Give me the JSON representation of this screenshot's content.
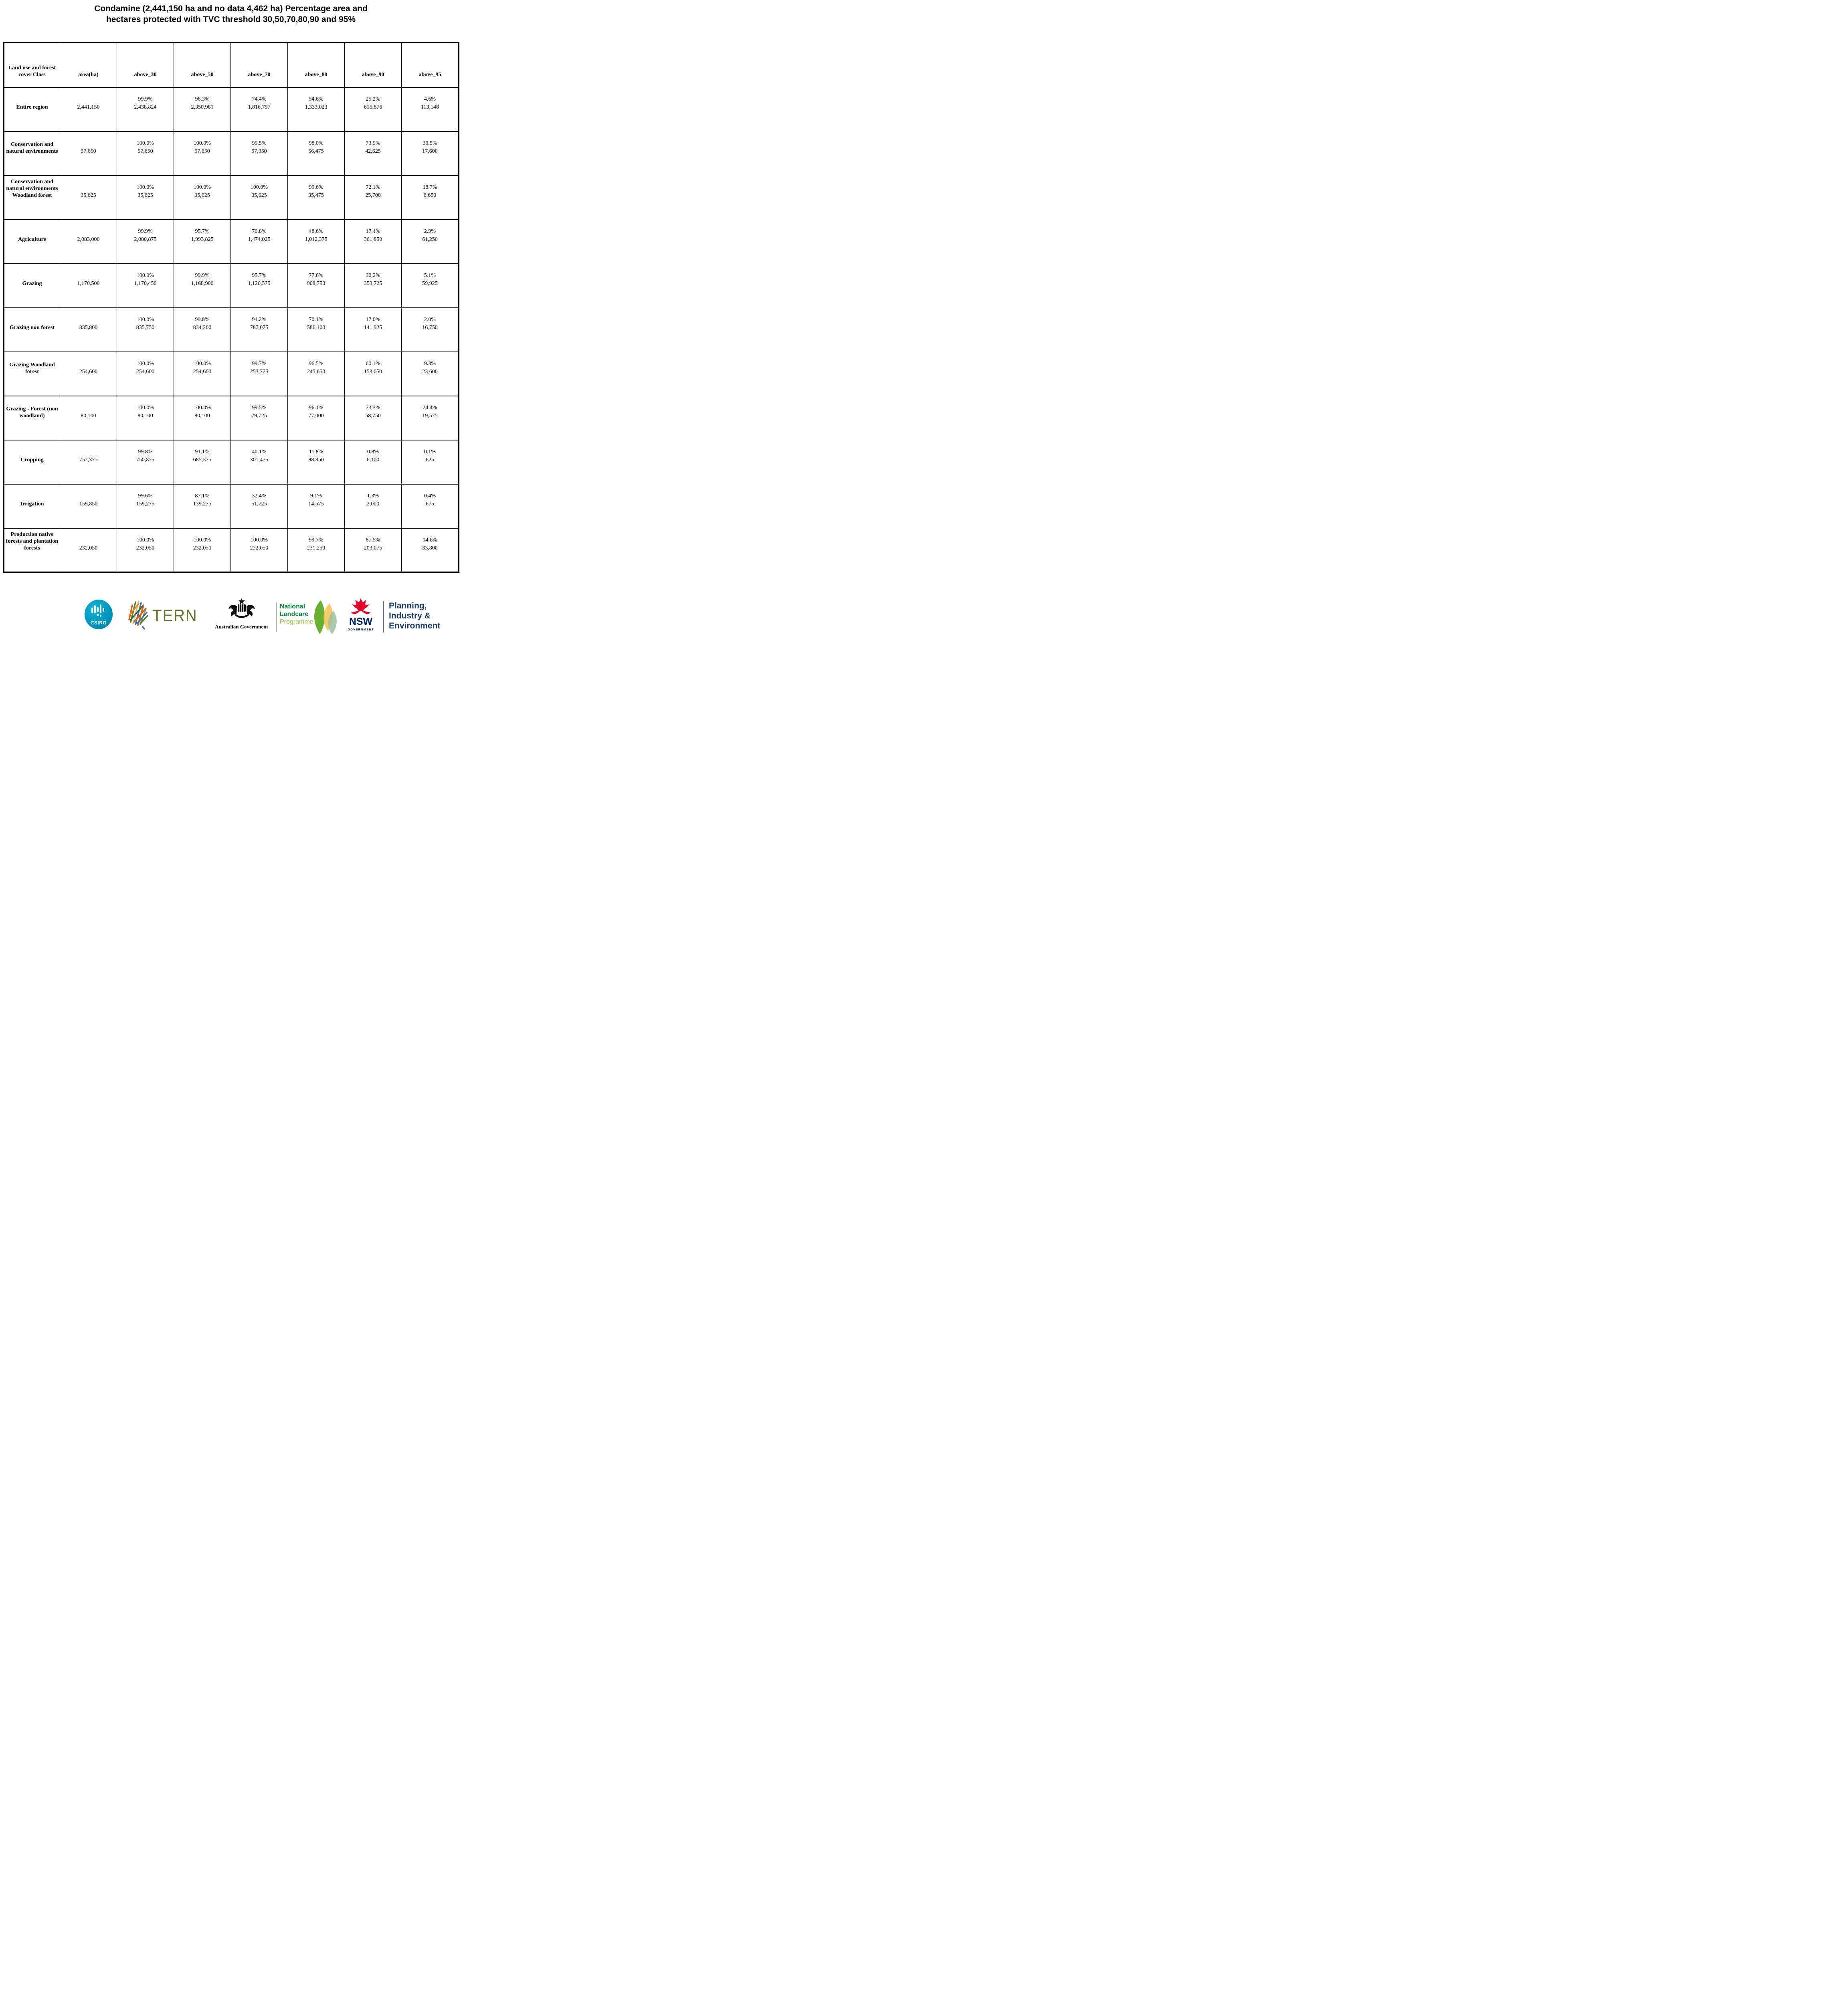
{
  "title": {
    "line1": "Condamine (2,441,150 ha and no data 4,462 ha) Percentage area and",
    "line2": "hectares protected with TVC threshold 30,50,70,80,90 and 95%"
  },
  "table": {
    "columns": [
      "Land use and forest cover Class",
      "area(ha)",
      "above_30",
      "above_50",
      "above_70",
      "above_80",
      "above_90",
      "above_95"
    ],
    "rows": [
      {
        "label": "Entire region",
        "area": "2,441,150",
        "cells": [
          {
            "pct": "99.9%",
            "ha": "2,438,824"
          },
          {
            "pct": "96.3%",
            "ha": "2,350,981"
          },
          {
            "pct": "74.4%",
            "ha": "1,816,797"
          },
          {
            "pct": "54.6%",
            "ha": "1,333,023"
          },
          {
            "pct": "25.2%",
            "ha": "615,876"
          },
          {
            "pct": "4.6%",
            "ha": "113,148"
          }
        ]
      },
      {
        "label": "Conservation and natural environments",
        "area": "57,650",
        "cells": [
          {
            "pct": "100.0%",
            "ha": "57,650"
          },
          {
            "pct": "100.0%",
            "ha": "57,650"
          },
          {
            "pct": "99.5%",
            "ha": "57,350"
          },
          {
            "pct": "98.0%",
            "ha": "56,475"
          },
          {
            "pct": "73.9%",
            "ha": "42,625"
          },
          {
            "pct": "30.5%",
            "ha": "17,600"
          }
        ]
      },
      {
        "label": "Conservation and natural environments Woodland forest",
        "area": "35,625",
        "cells": [
          {
            "pct": "100.0%",
            "ha": "35,625"
          },
          {
            "pct": "100.0%",
            "ha": "35,625"
          },
          {
            "pct": "100.0%",
            "ha": "35,625"
          },
          {
            "pct": "99.6%",
            "ha": "35,475"
          },
          {
            "pct": "72.1%",
            "ha": "25,700"
          },
          {
            "pct": "18.7%",
            "ha": "6,650"
          }
        ]
      },
      {
        "label": "Agriculture",
        "area": "2,083,000",
        "cells": [
          {
            "pct": "99.9%",
            "ha": "2,080,875"
          },
          {
            "pct": "95.7%",
            "ha": "1,993,825"
          },
          {
            "pct": "70.8%",
            "ha": "1,474,025"
          },
          {
            "pct": "48.6%",
            "ha": "1,012,375"
          },
          {
            "pct": "17.4%",
            "ha": "361,850"
          },
          {
            "pct": "2.9%",
            "ha": "61,250"
          }
        ]
      },
      {
        "label": "Grazing",
        "area": "1,170,500",
        "cells": [
          {
            "pct": "100.0%",
            "ha": "1,170,450"
          },
          {
            "pct": "99.9%",
            "ha": "1,168,900"
          },
          {
            "pct": "95.7%",
            "ha": "1,120,575"
          },
          {
            "pct": "77.6%",
            "ha": "908,750"
          },
          {
            "pct": "30.2%",
            "ha": "353,725"
          },
          {
            "pct": "5.1%",
            "ha": "59,925"
          }
        ]
      },
      {
        "label": "Grazing non forest",
        "area": "835,800",
        "cells": [
          {
            "pct": "100.0%",
            "ha": "835,750"
          },
          {
            "pct": "99.8%",
            "ha": "834,200"
          },
          {
            "pct": "94.2%",
            "ha": "787,075"
          },
          {
            "pct": "70.1%",
            "ha": "586,100"
          },
          {
            "pct": "17.0%",
            "ha": "141,925"
          },
          {
            "pct": "2.0%",
            "ha": "16,750"
          }
        ]
      },
      {
        "label": "Grazing Woodland forest",
        "area": "254,600",
        "cells": [
          {
            "pct": "100.0%",
            "ha": "254,600"
          },
          {
            "pct": "100.0%",
            "ha": "254,600"
          },
          {
            "pct": "99.7%",
            "ha": "253,775"
          },
          {
            "pct": "96.5%",
            "ha": "245,650"
          },
          {
            "pct": "60.1%",
            "ha": "153,050"
          },
          {
            "pct": "9.3%",
            "ha": "23,600"
          }
        ]
      },
      {
        "label": "Grazing - Forest (non woodland)",
        "area": "80,100",
        "cells": [
          {
            "pct": "100.0%",
            "ha": "80,100"
          },
          {
            "pct": "100.0%",
            "ha": "80,100"
          },
          {
            "pct": "99.5%",
            "ha": "79,725"
          },
          {
            "pct": "96.1%",
            "ha": "77,000"
          },
          {
            "pct": "73.3%",
            "ha": "58,750"
          },
          {
            "pct": "24.4%",
            "ha": "19,575"
          }
        ]
      },
      {
        "label": "Cropping",
        "area": "752,375",
        "cells": [
          {
            "pct": "99.8%",
            "ha": "750,875"
          },
          {
            "pct": "91.1%",
            "ha": "685,375"
          },
          {
            "pct": "40.1%",
            "ha": "301,475"
          },
          {
            "pct": "11.8%",
            "ha": "88,850"
          },
          {
            "pct": "0.8%",
            "ha": "6,100"
          },
          {
            "pct": "0.1%",
            "ha": "625"
          }
        ]
      },
      {
        "label": "Irrigation",
        "area": "159,850",
        "cells": [
          {
            "pct": "99.6%",
            "ha": "159,275"
          },
          {
            "pct": "87.1%",
            "ha": "139,275"
          },
          {
            "pct": "32.4%",
            "ha": "51,725"
          },
          {
            "pct": "9.1%",
            "ha": "14,575"
          },
          {
            "pct": "1.3%",
            "ha": "2,000"
          },
          {
            "pct": "0.4%",
            "ha": "675"
          }
        ]
      },
      {
        "label": "Production native forests and plantation forests",
        "area": "232,050",
        "cells": [
          {
            "pct": "100.0%",
            "ha": "232,050"
          },
          {
            "pct": "100.0%",
            "ha": "232,050"
          },
          {
            "pct": "100.0%",
            "ha": "232,050"
          },
          {
            "pct": "99.7%",
            "ha": "231,250"
          },
          {
            "pct": "87.5%",
            "ha": "203,075"
          },
          {
            "pct": "14.6%",
            "ha": "33,800"
          }
        ]
      }
    ]
  },
  "footer": {
    "csiro": {
      "label": "CSIRO",
      "teal": "#0096bc"
    },
    "tern": {
      "label": "TERN",
      "olive": "#66722f"
    },
    "australian_government": {
      "label": "Australian Government"
    },
    "landcare": {
      "line1": "National",
      "line2": "Landcare",
      "line3": "Programme",
      "dark_green": "#00883a",
      "light_green": "#8cc63f"
    },
    "nsw": {
      "label": "NSW",
      "sub": "GOVERNMENT",
      "red": "#e4002b",
      "navy": "#002664"
    },
    "planning": {
      "line1": "Planning,",
      "line2": "Industry &",
      "line3": "Environment",
      "navy": "#1d3c6d"
    }
  }
}
